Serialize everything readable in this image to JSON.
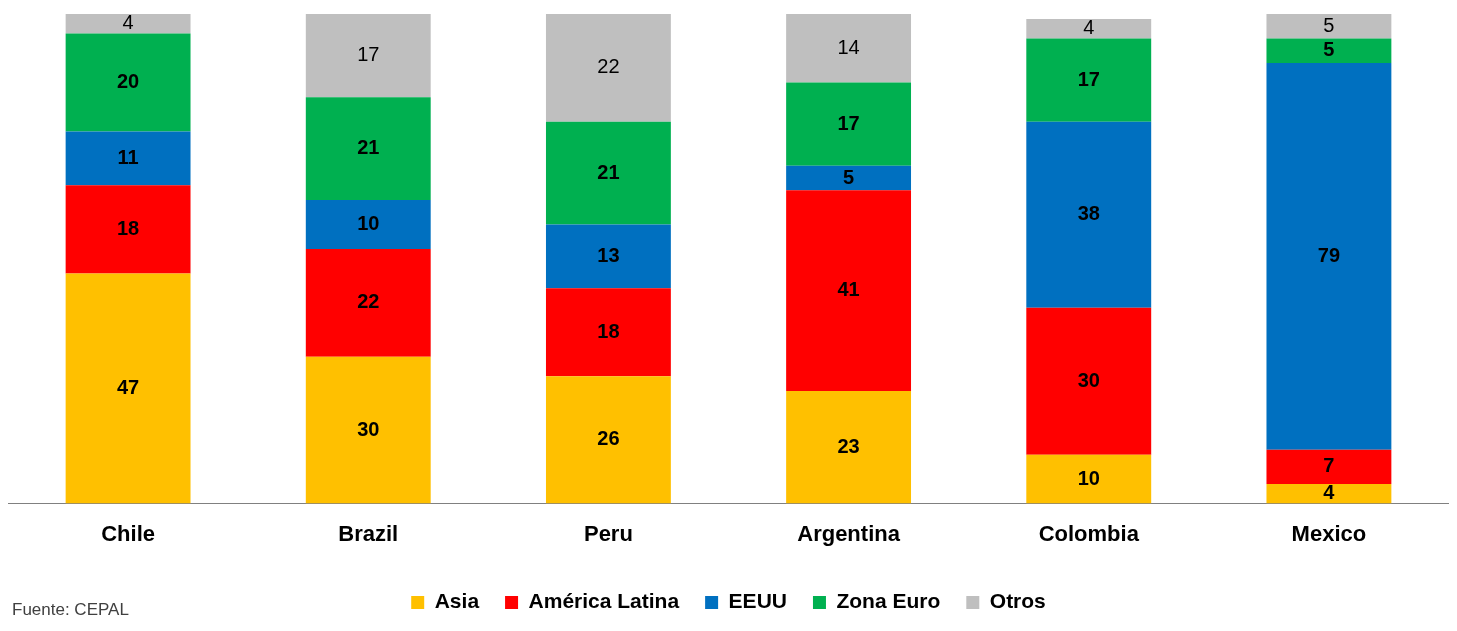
{
  "chart_data": {
    "type": "bar",
    "stacked": true,
    "data_labels": true,
    "grid": false,
    "legend": "bottom",
    "categories": [
      "Chile",
      "Brazil",
      "Peru",
      "Argentina",
      "Colombia",
      "Mexico"
    ],
    "series": [
      {
        "name": "Asia",
        "color": "#ffc000",
        "values": [
          47,
          30,
          26,
          23,
          10,
          4
        ]
      },
      {
        "name": "América Latina",
        "color": "#ff0000",
        "values": [
          18,
          22,
          18,
          41,
          30,
          7
        ]
      },
      {
        "name": "EEUU",
        "color": "#0070c0",
        "values": [
          11,
          10,
          13,
          5,
          38,
          79
        ]
      },
      {
        "name": "Zona Euro",
        "color": "#00b050",
        "values": [
          20,
          21,
          21,
          17,
          17,
          5
        ]
      },
      {
        "name": "Otros",
        "color": "#bfbfbf",
        "values": [
          4,
          17,
          22,
          14,
          4,
          5
        ]
      }
    ],
    "annotations": [
      "Fuente: CEPAL"
    ]
  }
}
